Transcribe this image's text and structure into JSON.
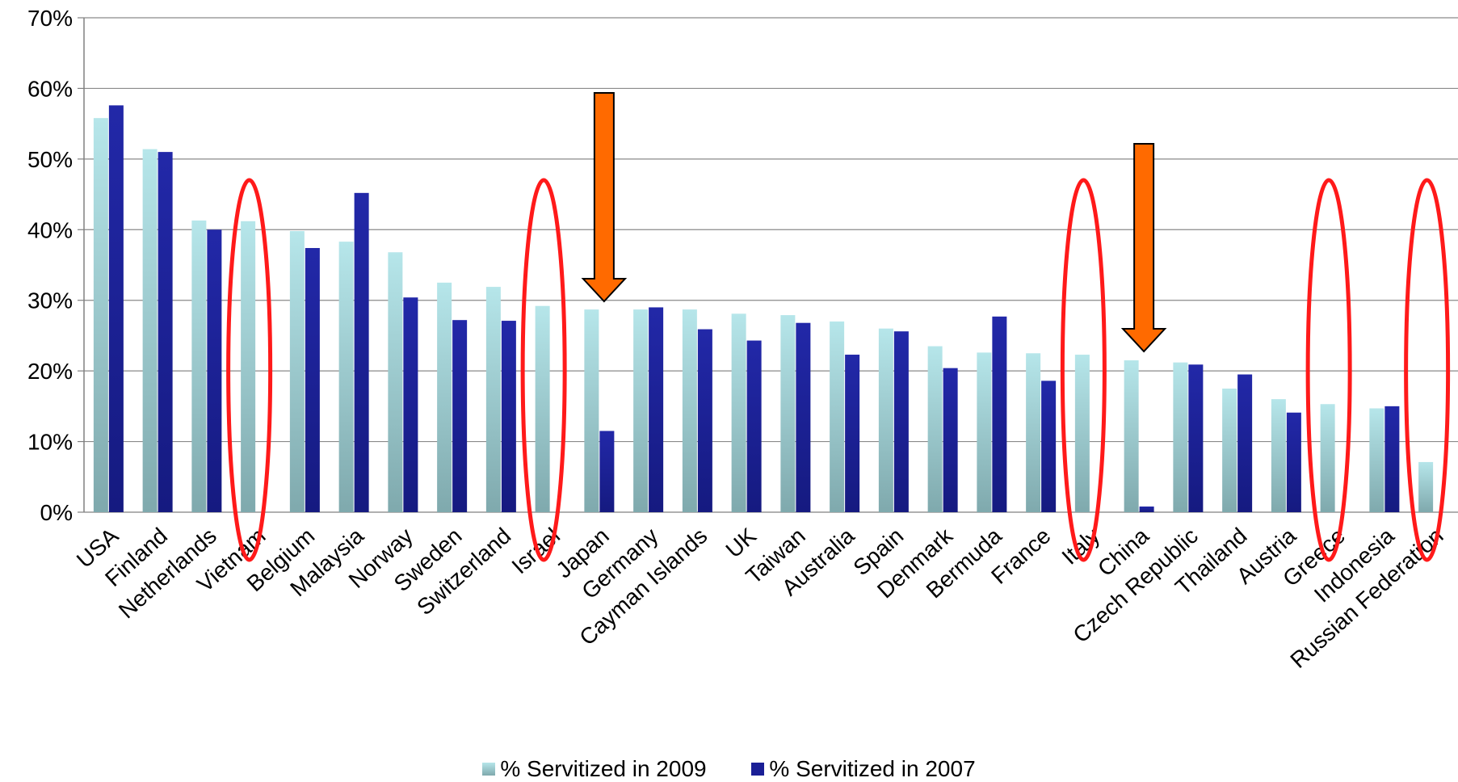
{
  "chart_data": {
    "type": "bar",
    "categories": [
      "USA",
      "Finland",
      "Netherlands",
      "Vietnam",
      "Belgium",
      "Malaysia",
      "Norway",
      "Sweden",
      "Switzerland",
      "Israel",
      "Japan",
      "Germany",
      "Cayman Islands",
      "UK",
      "Taiwan",
      "Australia",
      "Spain",
      "Denmark",
      "Bermuda",
      "France",
      "Italy",
      "China",
      "Czech Republic",
      "Thailand",
      "Austria",
      "Greece",
      "Indonesia",
      "Russian Federation"
    ],
    "series": [
      {
        "name": "% Servitized in 2009",
        "color": "#a8dde0",
        "values": [
          55.8,
          51.4,
          41.3,
          41.2,
          39.8,
          38.3,
          36.8,
          32.5,
          31.9,
          29.2,
          28.7,
          28.7,
          28.7,
          28.1,
          27.9,
          27.0,
          26.0,
          23.5,
          22.6,
          22.5,
          22.3,
          21.5,
          21.2,
          17.5,
          16.0,
          15.3,
          14.7,
          7.1
        ]
      },
      {
        "name": "% Servitized in 2007",
        "color": "#1a1f96",
        "values": [
          57.6,
          51.0,
          40.0,
          null,
          37.4,
          45.2,
          30.4,
          27.2,
          27.1,
          null,
          11.5,
          29.0,
          25.9,
          24.3,
          26.8,
          22.3,
          25.6,
          20.4,
          27.7,
          18.6,
          null,
          0.8,
          20.9,
          19.5,
          14.1,
          null,
          15.0,
          null
        ]
      }
    ],
    "yaxis": {
      "min": 0,
      "max": 70,
      "step": 10,
      "tick_labels": [
        "0%",
        "10%",
        "20%",
        "30%",
        "40%",
        "50%",
        "60%",
        "70%"
      ]
    },
    "grid": true,
    "legend_position": "bottom",
    "annotations": {
      "highlight_ellipses": [
        "Vietnam",
        "Israel",
        "Italy",
        "Greece",
        "Russian Federation"
      ],
      "arrows": [
        "Japan",
        "China"
      ],
      "ellipse_color": "#ff1a1a",
      "arrow_color": "#ff6a00"
    }
  }
}
